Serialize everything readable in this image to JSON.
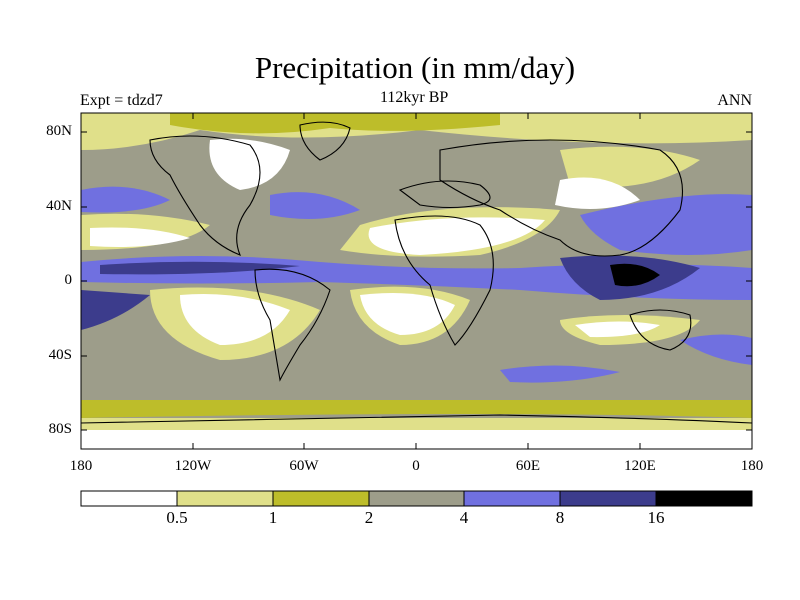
{
  "title": "Precipitation (in mm/day)",
  "subtitle": "112kyr BP",
  "left_label": "Expt = tdzd7",
  "right_label": "ANN",
  "lat_labels": [
    "80N",
    "40N",
    "0",
    "40S",
    "80S"
  ],
  "lon_labels": [
    "180",
    "120W",
    "60W",
    "0",
    "60E",
    "120E",
    "180"
  ],
  "colorbar": {
    "colors": [
      "#ffffff",
      "#e0e08a",
      "#bdbd2a",
      "#9d9d8a",
      "#7070e0",
      "#3c3c8c",
      "#000000"
    ],
    "labels": [
      "0.5",
      "1",
      "2",
      "4",
      "8",
      "16"
    ]
  }
}
